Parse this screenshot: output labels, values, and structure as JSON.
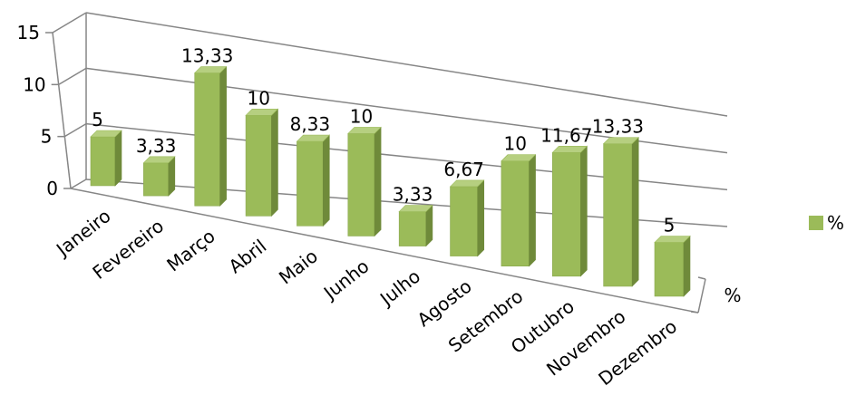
{
  "chart_data": {
    "type": "bar",
    "title": "",
    "categories": [
      "Janeiro",
      "Fevereiro",
      "Março",
      "Abril",
      "Maio",
      "Junho",
      "Julho",
      "Agosto",
      "Setembro",
      "Outubro",
      "Novembro",
      "Dezembro"
    ],
    "series": [
      {
        "name": "%",
        "values": [
          5,
          3.33,
          13.33,
          10,
          8.33,
          10,
          3.33,
          6.67,
          10,
          11.67,
          13.33,
          5
        ],
        "value_labels": [
          "5",
          "3,33",
          "13,33",
          "10",
          "8,33",
          "10",
          "3,33",
          "6,67",
          "10",
          "11,67",
          "13,33",
          "5"
        ],
        "color": "#9bbb59"
      }
    ],
    "y_ticks": [
      "0",
      "5",
      "10",
      "15"
    ],
    "ylim": [
      0,
      15
    ],
    "depth_axis_label": "%",
    "legend": {
      "position": "right",
      "label": "%"
    },
    "grid": true,
    "perspective": "3d"
  }
}
